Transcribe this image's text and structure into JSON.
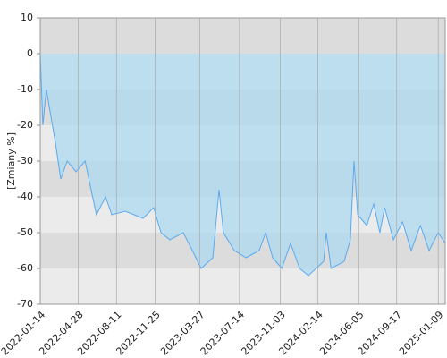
{
  "chart_data": {
    "type": "area-line",
    "y_label": "[Zmiany %]",
    "x": [
      "2022-01-14",
      "2022-01-21",
      "2022-01-31",
      "2022-02-08",
      "2022-02-25",
      "2022-03-11",
      "2022-03-29",
      "2022-04-22",
      "2022-05-17",
      "2022-06-17",
      "2022-07-12",
      "2022-07-29",
      "2022-09-04",
      "2022-10-23",
      "2022-11-21",
      "2022-12-11",
      "2023-01-04",
      "2023-02-10",
      "2023-03-07",
      "2023-03-31",
      "2023-05-02",
      "2023-05-19",
      "2023-05-31",
      "2023-06-30",
      "2023-08-01",
      "2023-09-06",
      "2023-09-24",
      "2023-10-13",
      "2023-11-07",
      "2023-12-01",
      "2023-12-26",
      "2024-01-19",
      "2024-03-01",
      "2024-03-08",
      "2024-03-21",
      "2024-04-26",
      "2024-05-13",
      "2024-05-23",
      "2024-06-02",
      "2024-06-27",
      "2024-07-16",
      "2024-08-02",
      "2024-08-15",
      "2024-09-08",
      "2024-10-03",
      "2024-10-27",
      "2024-11-21",
      "2024-12-15",
      "2025-01-09",
      "2025-01-28"
    ],
    "series": [
      {
        "color": "#5aaaf0",
        "fill": "#a8d8f0",
        "values": [
          0,
          -20,
          -10,
          -15,
          -25,
          -35,
          -30,
          -33,
          -30,
          -45,
          -40,
          -45,
          -44,
          -46,
          -43,
          -50,
          -52,
          -50,
          -55,
          -60,
          -57,
          -38,
          -50,
          -55,
          -57,
          -55,
          -50,
          -57,
          -60,
          -53,
          -60,
          -62,
          -58,
          -50,
          -60,
          -58,
          -52,
          -30,
          -45,
          -48,
          -42,
          -50,
          -43,
          -52,
          -47,
          -55,
          -48,
          -55,
          -50,
          -53
        ]
      }
    ],
    "xlim": [
      "2022-01-14",
      "2025-01-28"
    ],
    "xticks": [
      "2022-01-14",
      "2022-04-28",
      "2022-08-11",
      "2022-11-25",
      "2023-03-27",
      "2023-07-14",
      "2023-11-03",
      "2024-02-14",
      "2024-06-05",
      "2024-09-17",
      "2025-01-09"
    ],
    "ylim": [
      -70,
      10
    ],
    "yticks": [
      10,
      0,
      -10,
      -20,
      -30,
      -40,
      -50,
      -60,
      -70
    ],
    "grid": true
  }
}
